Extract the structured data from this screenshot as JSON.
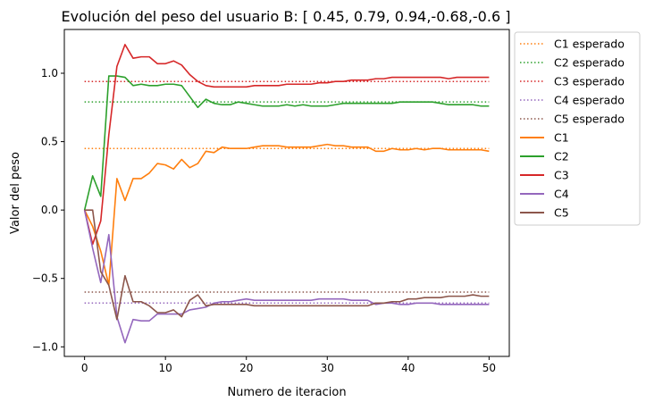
{
  "chart_data": {
    "type": "line",
    "title": "Evolución del peso del usuario B: [ 0.45, 0.79, 0.94,-0.68,-0.6 ]",
    "xlabel": "Numero de iteracion",
    "ylabel": "Valor del peso",
    "xlim": [
      -2.5,
      52.5
    ],
    "ylim": [
      -1.07,
      1.32
    ],
    "x_ticks": [
      0,
      10,
      20,
      30,
      40,
      50
    ],
    "y_ticks": [
      -1.0,
      -0.5,
      0.0,
      0.5,
      1.0
    ],
    "x_tick_labels": [
      "0",
      "10",
      "20",
      "30",
      "40",
      "50"
    ],
    "y_tick_labels": [
      "−1.0",
      "−0.5",
      "0.0",
      "0.5",
      "1.0"
    ],
    "grid": false,
    "legend_position": "outside-right",
    "x": [
      0,
      1,
      2,
      3,
      4,
      5,
      6,
      7,
      8,
      9,
      10,
      11,
      12,
      13,
      14,
      15,
      16,
      17,
      18,
      19,
      20,
      21,
      22,
      23,
      24,
      25,
      26,
      27,
      28,
      29,
      30,
      31,
      32,
      33,
      34,
      35,
      36,
      37,
      38,
      39,
      40,
      41,
      42,
      43,
      44,
      45,
      46,
      47,
      48,
      49,
      50
    ],
    "expected": [
      {
        "name": "C1 esperado",
        "value": 0.45,
        "color": "#ff7f0e"
      },
      {
        "name": "C2 esperado",
        "value": 0.79,
        "color": "#2ca02c"
      },
      {
        "name": "C3 esperado",
        "value": 0.94,
        "color": "#d62728"
      },
      {
        "name": "C4 esperado",
        "value": -0.68,
        "color": "#9467bd"
      },
      {
        "name": "C5 esperado",
        "value": -0.6,
        "color": "#8c564b"
      }
    ],
    "series": [
      {
        "name": "C1",
        "color": "#ff7f0e",
        "values": [
          0.0,
          -0.12,
          -0.3,
          -0.55,
          0.23,
          0.07,
          0.23,
          0.23,
          0.27,
          0.34,
          0.33,
          0.3,
          0.37,
          0.31,
          0.34,
          0.43,
          0.42,
          0.46,
          0.45,
          0.45,
          0.45,
          0.46,
          0.47,
          0.47,
          0.47,
          0.46,
          0.46,
          0.46,
          0.46,
          0.47,
          0.48,
          0.47,
          0.47,
          0.46,
          0.46,
          0.46,
          0.43,
          0.43,
          0.45,
          0.44,
          0.44,
          0.45,
          0.44,
          0.45,
          0.45,
          0.44,
          0.44,
          0.44,
          0.44,
          0.44,
          0.43
        ]
      },
      {
        "name": "C2",
        "color": "#2ca02c",
        "values": [
          0.0,
          0.25,
          0.1,
          0.98,
          0.98,
          0.97,
          0.91,
          0.92,
          0.91,
          0.91,
          0.92,
          0.92,
          0.91,
          0.83,
          0.75,
          0.81,
          0.78,
          0.77,
          0.77,
          0.79,
          0.78,
          0.77,
          0.76,
          0.76,
          0.76,
          0.77,
          0.76,
          0.77,
          0.76,
          0.76,
          0.76,
          0.77,
          0.78,
          0.78,
          0.78,
          0.78,
          0.78,
          0.78,
          0.78,
          0.79,
          0.79,
          0.79,
          0.79,
          0.79,
          0.78,
          0.77,
          0.77,
          0.77,
          0.77,
          0.76,
          0.76
        ]
      },
      {
        "name": "C3",
        "color": "#d62728",
        "values": [
          0.0,
          -0.25,
          -0.08,
          0.55,
          1.05,
          1.21,
          1.11,
          1.12,
          1.12,
          1.07,
          1.07,
          1.09,
          1.06,
          0.99,
          0.94,
          0.91,
          0.9,
          0.9,
          0.9,
          0.9,
          0.9,
          0.91,
          0.91,
          0.91,
          0.91,
          0.92,
          0.92,
          0.92,
          0.92,
          0.93,
          0.93,
          0.94,
          0.94,
          0.95,
          0.95,
          0.95,
          0.96,
          0.96,
          0.97,
          0.97,
          0.97,
          0.97,
          0.97,
          0.97,
          0.97,
          0.96,
          0.97,
          0.97,
          0.97,
          0.97,
          0.97
        ]
      },
      {
        "name": "C4",
        "color": "#9467bd",
        "values": [
          0.0,
          -0.28,
          -0.53,
          -0.18,
          -0.78,
          -0.97,
          -0.8,
          -0.81,
          -0.81,
          -0.76,
          -0.76,
          -0.76,
          -0.76,
          -0.73,
          -0.72,
          -0.71,
          -0.68,
          -0.67,
          -0.67,
          -0.66,
          -0.65,
          -0.66,
          -0.66,
          -0.66,
          -0.66,
          -0.66,
          -0.66,
          -0.66,
          -0.66,
          -0.65,
          -0.65,
          -0.65,
          -0.65,
          -0.66,
          -0.66,
          -0.66,
          -0.69,
          -0.68,
          -0.68,
          -0.69,
          -0.69,
          -0.68,
          -0.68,
          -0.68,
          -0.69,
          -0.69,
          -0.69,
          -0.69,
          -0.69,
          -0.69,
          -0.69
        ]
      },
      {
        "name": "C5",
        "color": "#8c564b",
        "values": [
          0.0,
          0.0,
          -0.45,
          -0.55,
          -0.8,
          -0.48,
          -0.67,
          -0.67,
          -0.7,
          -0.75,
          -0.75,
          -0.73,
          -0.78,
          -0.66,
          -0.62,
          -0.7,
          -0.69,
          -0.69,
          -0.69,
          -0.69,
          -0.69,
          -0.7,
          -0.7,
          -0.7,
          -0.7,
          -0.7,
          -0.7,
          -0.7,
          -0.7,
          -0.7,
          -0.7,
          -0.7,
          -0.7,
          -0.7,
          -0.7,
          -0.7,
          -0.68,
          -0.68,
          -0.67,
          -0.67,
          -0.65,
          -0.65,
          -0.64,
          -0.64,
          -0.64,
          -0.63,
          -0.63,
          -0.63,
          -0.62,
          -0.63,
          -0.63
        ]
      }
    ]
  }
}
